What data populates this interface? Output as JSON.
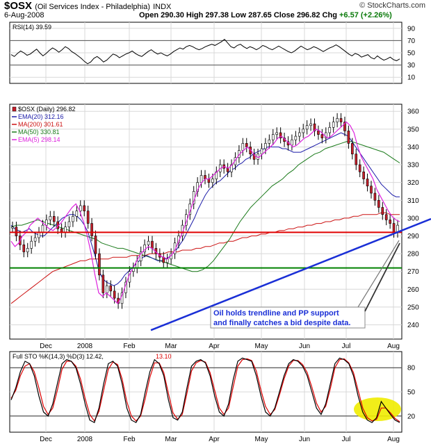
{
  "header": {
    "symbol": "$OSX",
    "name": "(Oil Services Index - Philadelphia)",
    "exchange": "INDX",
    "date": "6-Aug-2008",
    "ohlc": "Open 290.30  High 297.38  Low 287.65  Close 296.82  Chg",
    "change": "+6.57 (+2.26%)",
    "copyright": "© StockCharts.com"
  },
  "chart_data": [
    {
      "type": "line",
      "panel": "rsi",
      "legend": "RSI(14) 39.59",
      "yticks": [
        90,
        70,
        50,
        30,
        10
      ],
      "ylim": [
        0,
        100
      ],
      "bands": [
        70,
        30
      ],
      "series": [
        {
          "name": "RSI(14)",
          "color": "#000000",
          "values": [
            47,
            44,
            49,
            53,
            50,
            46,
            48,
            52,
            56,
            50,
            45,
            49,
            54,
            58,
            55,
            51,
            55,
            60,
            57,
            52,
            49,
            45,
            41,
            36,
            32,
            35,
            41,
            44,
            40,
            35,
            38,
            43,
            48,
            46,
            42,
            45,
            48,
            50,
            53,
            49,
            46,
            44,
            48,
            52,
            55,
            51,
            48,
            50,
            47,
            45,
            48,
            52,
            55,
            58,
            56,
            60,
            62,
            60,
            57,
            55,
            57,
            60,
            62,
            64,
            62,
            65,
            68,
            72,
            66,
            60,
            58,
            62,
            64,
            60,
            57,
            60,
            58,
            55,
            58,
            62,
            60,
            57,
            55,
            58,
            61,
            58,
            55,
            52,
            50,
            53,
            57,
            61,
            58,
            55,
            57,
            60,
            58,
            55,
            52,
            55,
            58,
            60,
            63,
            60,
            56,
            52,
            48,
            45,
            49,
            47,
            43,
            45,
            47,
            42,
            40,
            45,
            41,
            38,
            40,
            43,
            39,
            37,
            40
          ]
        }
      ]
    },
    {
      "type": "line",
      "panel": "price",
      "legend": "$OSX (Daily) 296.82",
      "yticks": [
        360,
        350,
        340,
        330,
        320,
        310,
        300,
        290,
        280,
        270,
        260,
        250,
        240
      ],
      "ylim": [
        232,
        364
      ],
      "xticks": [
        "Dec",
        "2008",
        "Feb",
        "Mar",
        "Apr",
        "May",
        "Jun",
        "Jul",
        "Aug"
      ],
      "series": [
        {
          "name": "EMA(20) 312.16",
          "color": "#1a1aa8",
          "values": [
            296,
            294,
            293,
            292,
            293,
            294,
            292,
            291,
            290,
            290,
            292,
            294,
            296,
            298,
            300,
            301,
            302,
            302,
            301,
            299,
            296,
            292,
            285,
            278,
            270,
            266,
            264,
            263,
            262,
            263,
            265,
            268,
            270,
            272,
            274,
            276,
            278,
            279,
            278,
            277,
            276,
            276,
            277,
            278,
            280,
            282,
            285,
            288,
            292,
            296,
            300,
            305,
            309,
            313,
            316,
            318,
            320,
            321,
            323,
            325,
            327,
            328,
            330,
            331,
            333,
            334,
            336,
            337,
            338,
            339,
            340,
            340,
            340,
            340,
            339,
            339,
            338,
            337,
            337,
            337,
            338,
            339,
            340,
            341,
            342,
            343,
            344,
            345,
            346,
            347,
            348,
            347,
            346,
            343,
            340,
            337,
            334,
            331,
            328,
            325,
            322,
            319,
            317,
            315,
            313,
            312,
            312
          ]
        },
        {
          "name": "MA(200) 301.61",
          "color": "#cc1111",
          "values": [
            252,
            254,
            256,
            258,
            260,
            262,
            264,
            266,
            268,
            270,
            271,
            272,
            273,
            274,
            275,
            276,
            276,
            277,
            277,
            277,
            277,
            277,
            278,
            278,
            278,
            278,
            279,
            279,
            279,
            279,
            280,
            280,
            280,
            280,
            281,
            281,
            281,
            282,
            282,
            282,
            283,
            283,
            284,
            284,
            285,
            286,
            286,
            287,
            287,
            288,
            289,
            289,
            290,
            290,
            291,
            291,
            292,
            292,
            293,
            293,
            294,
            294,
            295,
            295,
            296,
            296,
            297,
            297,
            298,
            298,
            299,
            299,
            300,
            300,
            301,
            301,
            302,
            302,
            302,
            302,
            303,
            303,
            302,
            302,
            302
          ]
        },
        {
          "name": "MA(50) 330.81",
          "color": "#1a7a1a",
          "values": [
            295,
            296,
            296,
            297,
            298,
            299,
            298,
            297,
            296,
            295,
            294,
            293,
            292,
            291,
            290,
            289,
            288,
            286,
            285,
            284,
            283,
            283,
            282,
            281,
            280,
            279,
            278,
            277,
            276,
            275,
            274,
            273,
            272,
            271,
            270,
            270,
            271,
            273,
            276,
            280,
            284,
            288,
            293,
            298,
            302,
            306,
            309,
            312,
            315,
            318,
            320,
            322,
            325,
            327,
            330,
            332,
            334,
            336,
            337,
            339,
            340,
            341,
            342,
            343,
            343,
            342,
            341,
            340,
            339,
            338,
            337,
            335,
            333,
            331
          ]
        },
        {
          "name": "EMA(5) 298.14",
          "color": "#dd22dd",
          "values": [
            287,
            284,
            286,
            290,
            292,
            296,
            298,
            300,
            298,
            296,
            294,
            293,
            295,
            297,
            300,
            303,
            306,
            308,
            304,
            298,
            290,
            280,
            268,
            258,
            256,
            258,
            256,
            254,
            252,
            256,
            262,
            268,
            272,
            276,
            280,
            282,
            284,
            283,
            281,
            279,
            278,
            277,
            279,
            282,
            287,
            292,
            298,
            304,
            310,
            316,
            320,
            322,
            322,
            324,
            326,
            328,
            329,
            328,
            330,
            333,
            336,
            338,
            340,
            338,
            335,
            334,
            336,
            338,
            340,
            342,
            345,
            346,
            344,
            342,
            340,
            341,
            343,
            345,
            346,
            348,
            350,
            349,
            347,
            345,
            346,
            348,
            350,
            352,
            354,
            352,
            348,
            340,
            334,
            330,
            326,
            322,
            316,
            312,
            308,
            304,
            301,
            299,
            298
          ]
        }
      ],
      "candles": [
        295,
        290,
        285,
        281,
        283,
        287,
        289,
        292,
        296,
        299,
        301,
        298,
        294,
        292,
        295,
        298,
        301,
        304,
        307,
        304,
        297,
        290,
        280,
        268,
        258,
        262,
        259,
        255,
        252,
        258,
        264,
        270,
        272,
        276,
        281,
        285,
        287,
        283,
        280,
        278,
        275,
        277,
        280,
        286,
        290,
        296,
        302,
        308,
        315,
        320,
        324,
        322,
        320,
        322,
        326,
        330,
        328,
        326,
        330,
        334,
        338,
        342,
        340,
        336,
        333,
        336,
        339,
        342,
        344,
        347,
        348,
        345,
        343,
        341,
        344,
        346,
        348,
        350,
        352,
        353,
        349,
        347,
        345,
        348,
        351,
        354,
        356,
        354,
        349,
        342,
        336,
        330,
        326,
        322,
        318,
        314,
        310,
        306,
        302,
        299,
        297,
        292,
        296
      ],
      "hlines": [
        {
          "value": 292,
          "color": "#e00000"
        },
        {
          "value": 272,
          "color": "#008000"
        }
      ],
      "trendline": {
        "from": [
          0.36,
          237
        ],
        "to": [
          1.0,
          298
        ],
        "color": "#1a2fd6"
      },
      "annotation": [
        "Oil holds trendline and PP support",
        "and finally catches a bid  despite data."
      ]
    },
    {
      "type": "line",
      "panel": "stochastic",
      "legend_k": "Full STO %K(14,3) %D(3) 12.42,",
      "legend_d": "13.10",
      "yticks": [
        80,
        50,
        20
      ],
      "ylim": [
        0,
        100
      ],
      "bands": [
        80,
        20
      ],
      "xticks": [
        "Dec",
        "2008",
        "Feb",
        "Mar",
        "Apr",
        "May",
        "Jun",
        "Jul",
        "Aug"
      ],
      "series": [
        {
          "name": "%K",
          "color": "#000000",
          "values": [
            40,
            55,
            75,
            88,
            85,
            70,
            45,
            25,
            20,
            35,
            60,
            85,
            90,
            88,
            80,
            60,
            35,
            15,
            12,
            30,
            60,
            85,
            88,
            82,
            60,
            30,
            15,
            12,
            22,
            50,
            75,
            90,
            85,
            70,
            40,
            18,
            15,
            25,
            55,
            82,
            88,
            90,
            86,
            70,
            45,
            25,
            20,
            35,
            65,
            88,
            92,
            90,
            88,
            70,
            45,
            25,
            20,
            30,
            50,
            70,
            85,
            90,
            88,
            82,
            70,
            50,
            30,
            22,
            35,
            60,
            85,
            92,
            90,
            85,
            70,
            45,
            25,
            15,
            12,
            18,
            38,
            30,
            22,
            15,
            12
          ]
        },
        {
          "name": "%D",
          "color": "#dd0000",
          "values": [
            42,
            52,
            70,
            82,
            85,
            75,
            55,
            32,
            22,
            30,
            52,
            78,
            88,
            88,
            82,
            66,
            42,
            22,
            14,
            26,
            52,
            78,
            87,
            84,
            66,
            38,
            20,
            14,
            20,
            42,
            68,
            86,
            86,
            74,
            48,
            24,
            16,
            22,
            48,
            76,
            86,
            89,
            87,
            74,
            52,
            30,
            22,
            30,
            56,
            82,
            90,
            91,
            89,
            76,
            52,
            32,
            22,
            28,
            46,
            66,
            82,
            89,
            89,
            84,
            74,
            56,
            36,
            25,
            32,
            54,
            80,
            90,
            91,
            86,
            74,
            52,
            30,
            18,
            14,
            16,
            30,
            30,
            24,
            17,
            13
          ]
        }
      ],
      "highlight": "#f0ec00"
    }
  ]
}
